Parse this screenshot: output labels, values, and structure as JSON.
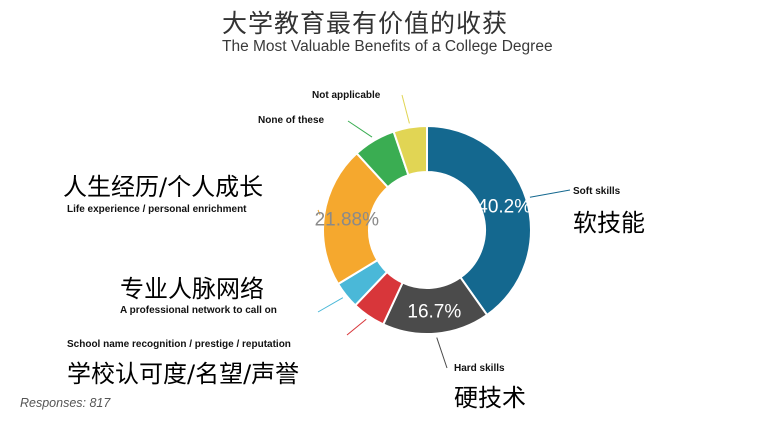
{
  "title_cn": "大学教育最有价值的收获",
  "title_en": "The Most Valuable Benefits of a College Degree",
  "responses": "Responses: 817",
  "chart_data": {
    "type": "pie",
    "donut": true,
    "categories": [
      "Soft skills",
      "Hard skills",
      "School name recognition / prestige / reputation",
      "A professional network to call on",
      "Life experience / personal enrichment",
      "None of these",
      "Not applicable"
    ],
    "categories_cn": [
      "软技能",
      "硬技术",
      "学校认可度/名望/声誉",
      "专业人脉网络",
      "人生经历/个人成长",
      "",
      ""
    ],
    "values": [
      40.2,
      16.7,
      5.2,
      4.2,
      21.88,
      6.6,
      5.2
    ],
    "value_labels": [
      "40.2%",
      "16.7%",
      "",
      "",
      "21.88%",
      "",
      ""
    ],
    "colors": [
      "#14688f",
      "#4b4b4b",
      "#d8363a",
      "#4ab8d8",
      "#f5a82e",
      "#3aad52",
      "#e1d554"
    ]
  }
}
